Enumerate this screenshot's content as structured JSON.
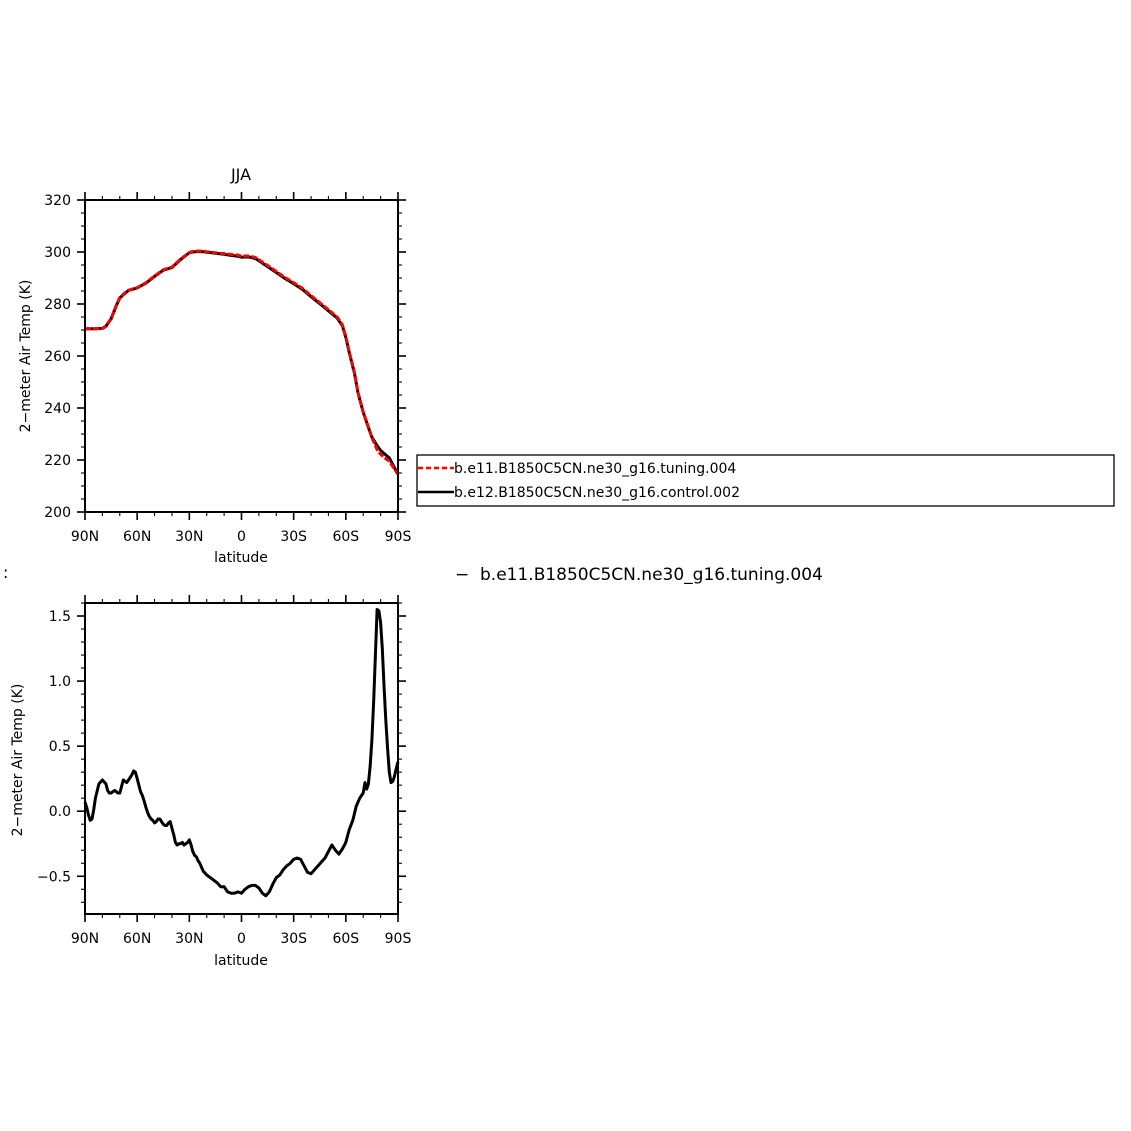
{
  "chart_data": [
    {
      "type": "line",
      "title": "JJA",
      "xlabel": "latitude",
      "ylabel": "2−meter Air Temp (K)",
      "xlim": [
        90,
        -90
      ],
      "ylim": [
        200,
        320
      ],
      "x_ticks": [
        90,
        60,
        30,
        0,
        -30,
        -60,
        -90
      ],
      "x_tick_labels": [
        "90N",
        "60N",
        "30N",
        "0",
        "30S",
        "60S",
        "90S"
      ],
      "y_ticks": [
        200,
        220,
        240,
        260,
        280,
        300,
        320
      ],
      "y_tick_labels": [
        "200",
        "220",
        "240",
        "260",
        "280",
        "300",
        "320"
      ],
      "series": [
        {
          "name": "b.e11.B1850C5CN.ne30_g16.tuning.004",
          "color": "#ff0000",
          "dashed": true,
          "x": [
            90,
            85,
            80,
            78,
            75,
            72,
            70,
            67,
            65,
            60,
            55,
            50,
            45,
            40,
            35,
            30,
            28,
            25,
            22,
            20,
            17,
            15,
            10,
            5,
            2,
            0,
            -3,
            -5,
            -8,
            -10,
            -15,
            -20,
            -25,
            -30,
            -35,
            -40,
            -45,
            -50,
            -55,
            -58,
            -60,
            -62,
            -65,
            -67,
            -70,
            -73,
            -75,
            -78,
            -80,
            -82,
            -85,
            -88,
            -90
          ],
          "values": [
            270.5,
            270.4,
            270.6,
            271.5,
            274.5,
            279.5,
            282.5,
            284.3,
            285.3,
            286.3,
            288.2,
            290.8,
            293.2,
            294.2,
            297.3,
            299.8,
            300.2,
            300.4,
            300.3,
            300.1,
            299.9,
            299.7,
            299.4,
            299.0,
            298.8,
            298.4,
            298.5,
            298.4,
            297.9,
            297.0,
            294.8,
            292.5,
            290.2,
            288.2,
            286.0,
            283.2,
            280.5,
            277.8,
            275.0,
            272.0,
            267.5,
            261.5,
            253.5,
            246.0,
            238.5,
            232.5,
            228.5,
            224.0,
            222.2,
            221.0,
            219.5,
            216.5,
            214.5
          ]
        },
        {
          "name": "b.e12.B1850C5CN.ne30_g16.control.002",
          "color": "#000000",
          "dashed": false,
          "x": [
            90,
            85,
            80,
            78,
            75,
            72,
            70,
            67,
            65,
            60,
            55,
            50,
            45,
            40,
            35,
            30,
            28,
            25,
            22,
            20,
            17,
            15,
            10,
            5,
            2,
            0,
            -3,
            -5,
            -8,
            -10,
            -15,
            -20,
            -25,
            -30,
            -35,
            -40,
            -45,
            -50,
            -55,
            -58,
            -60,
            -62,
            -65,
            -67,
            -70,
            -73,
            -75,
            -78,
            -80,
            -82,
            -85,
            -88,
            -90
          ],
          "values": [
            270.5,
            270.5,
            270.6,
            271.4,
            274.3,
            279.3,
            282.3,
            284.1,
            285.2,
            286.2,
            288.0,
            290.6,
            293.0,
            294.0,
            297.1,
            299.7,
            300.0,
            300.2,
            300.1,
            299.9,
            299.7,
            299.5,
            299.1,
            298.6,
            298.4,
            298.0,
            298.1,
            298.0,
            297.5,
            296.6,
            294.4,
            292.1,
            289.8,
            287.8,
            285.6,
            282.8,
            280.1,
            277.4,
            274.6,
            271.6,
            267.2,
            261.2,
            253.3,
            245.8,
            238.4,
            232.5,
            228.8,
            225.5,
            223.7,
            222.5,
            220.8,
            217.0,
            214.5
          ]
        }
      ],
      "legend": {
        "placement": "right",
        "entries": [
          "b.e11.B1850C5CN.ne30_g16.tuning.004",
          "b.e12.B1850C5CN.ne30_g16.control.002"
        ]
      }
    },
    {
      "type": "line",
      "title": "",
      "xlabel": "latitude",
      "ylabel": "2−meter Air Temp (K)",
      "xlim": [
        90,
        -90
      ],
      "ylim": [
        -0.79,
        1.6
      ],
      "x_ticks": [
        90,
        60,
        30,
        0,
        -30,
        -60,
        -90
      ],
      "x_tick_labels": [
        "90N",
        "60N",
        "30N",
        "0",
        "30S",
        "60S",
        "90S"
      ],
      "y_ticks": [
        -0.5,
        0.0,
        0.5,
        1.0,
        1.5
      ],
      "y_tick_labels": [
        "−0.5",
        "0.0",
        "0.5",
        "1.0",
        "1.5"
      ],
      "series": [
        {
          "name": "",
          "color": "#000000",
          "dashed": false,
          "x": [
            90,
            89,
            88,
            87,
            86,
            85,
            84,
            82,
            80,
            78,
            77,
            76,
            75,
            73,
            72,
            71,
            70,
            68,
            66,
            65,
            64,
            63,
            62,
            61,
            60,
            59,
            58,
            57,
            56,
            55,
            54,
            53,
            52,
            51,
            50,
            49,
            48,
            47,
            46,
            45,
            44,
            43,
            42,
            41,
            40,
            39,
            38,
            37,
            36,
            35,
            34,
            33,
            32,
            31,
            30,
            29,
            28,
            27,
            26,
            25,
            24,
            23,
            22,
            20,
            18,
            16,
            14,
            12,
            10,
            8,
            6,
            4,
            2,
            0,
            -2,
            -4,
            -6,
            -8,
            -10,
            -12,
            -14,
            -16,
            -18,
            -20,
            -22,
            -24,
            -26,
            -28,
            -30,
            -32,
            -34,
            -36,
            -38,
            -40,
            -42,
            -44,
            -46,
            -48,
            -50,
            -52,
            -54,
            -56,
            -58,
            -60,
            -62,
            -64,
            -66,
            -68,
            -70,
            -71,
            -72,
            -73,
            -74,
            -75,
            -76,
            -77,
            -78,
            -79,
            -80,
            -81,
            -82,
            -83,
            -84,
            -85,
            -86,
            -87,
            -88,
            -89,
            -90
          ],
          "values": [
            0.07,
            0.03,
            -0.03,
            -0.07,
            -0.06,
            0.01,
            0.1,
            0.21,
            0.24,
            0.21,
            0.16,
            0.14,
            0.14,
            0.16,
            0.15,
            0.14,
            0.14,
            0.24,
            0.22,
            0.24,
            0.26,
            0.28,
            0.31,
            0.3,
            0.25,
            0.2,
            0.15,
            0.12,
            0.08,
            0.03,
            -0.01,
            -0.04,
            -0.06,
            -0.07,
            -0.09,
            -0.08,
            -0.06,
            -0.06,
            -0.08,
            -0.1,
            -0.11,
            -0.11,
            -0.09,
            -0.08,
            -0.13,
            -0.18,
            -0.24,
            -0.26,
            -0.25,
            -0.25,
            -0.24,
            -0.26,
            -0.25,
            -0.24,
            -0.22,
            -0.26,
            -0.31,
            -0.34,
            -0.35,
            -0.38,
            -0.4,
            -0.43,
            -0.46,
            -0.49,
            -0.51,
            -0.53,
            -0.55,
            -0.58,
            -0.58,
            -0.62,
            -0.63,
            -0.63,
            -0.62,
            -0.63,
            -0.6,
            -0.58,
            -0.57,
            -0.57,
            -0.59,
            -0.63,
            -0.65,
            -0.62,
            -0.56,
            -0.51,
            -0.49,
            -0.45,
            -0.42,
            -0.4,
            -0.37,
            -0.36,
            -0.37,
            -0.42,
            -0.47,
            -0.48,
            -0.45,
            -0.42,
            -0.39,
            -0.36,
            -0.31,
            -0.26,
            -0.3,
            -0.33,
            -0.29,
            -0.24,
            -0.14,
            -0.07,
            0.04,
            0.1,
            0.14,
            0.22,
            0.17,
            0.21,
            0.35,
            0.55,
            0.85,
            1.2,
            1.55,
            1.54,
            1.45,
            1.25,
            0.95,
            0.7,
            0.48,
            0.3,
            0.22,
            0.23,
            0.27,
            0.33,
            0.38
          ]
        }
      ]
    }
  ],
  "stray_mark": ":",
  "lower_legend": {
    "line": "−",
    "label": "b.e11.B1850C5CN.ne30_g16.tuning.004"
  }
}
